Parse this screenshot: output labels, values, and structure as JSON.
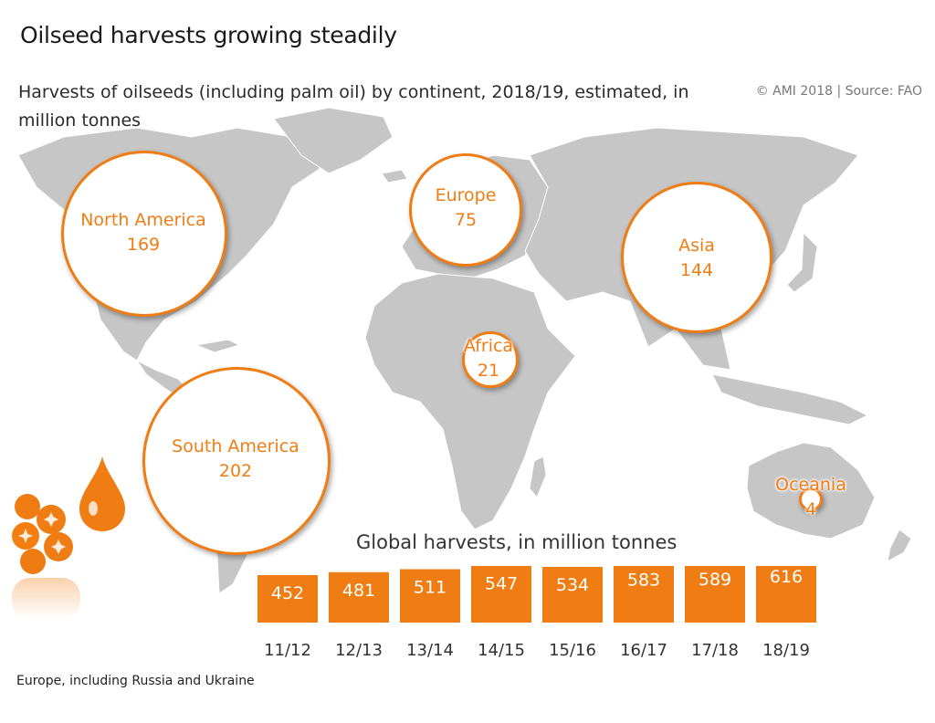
{
  "title": "Oilseed harvests growing steadily",
  "subtitle": "Harvests of oilseeds (including palm oil) by continent, 2018/19, estimated, in million tonnes",
  "source": "© AMI 2018 | Source: FAO",
  "footnote": "Europe, including Russia and Ukraine",
  "colors": {
    "accent": "#f07d14",
    "land": "#c6c6c6",
    "text": "#333333"
  },
  "continents": [
    {
      "name": "North America",
      "value": "169"
    },
    {
      "name": "Europe",
      "value": "75"
    },
    {
      "name": "Asia",
      "value": "144"
    },
    {
      "name": "Africa",
      "value": "21"
    },
    {
      "name": "South America",
      "value": "202"
    },
    {
      "name": "Oceania",
      "value": "4"
    }
  ],
  "chart_data": {
    "type": "bar",
    "title": "Global harvests, in million tonnes",
    "categories": [
      "11/12",
      "12/13",
      "13/14",
      "14/15",
      "15/16",
      "16/17",
      "17/18",
      "18/19"
    ],
    "values": [
      452,
      481,
      511,
      547,
      534,
      583,
      589,
      616
    ],
    "data_labels": [
      "452",
      "481",
      "511",
      "547",
      "534",
      "583",
      "589",
      "616"
    ]
  }
}
